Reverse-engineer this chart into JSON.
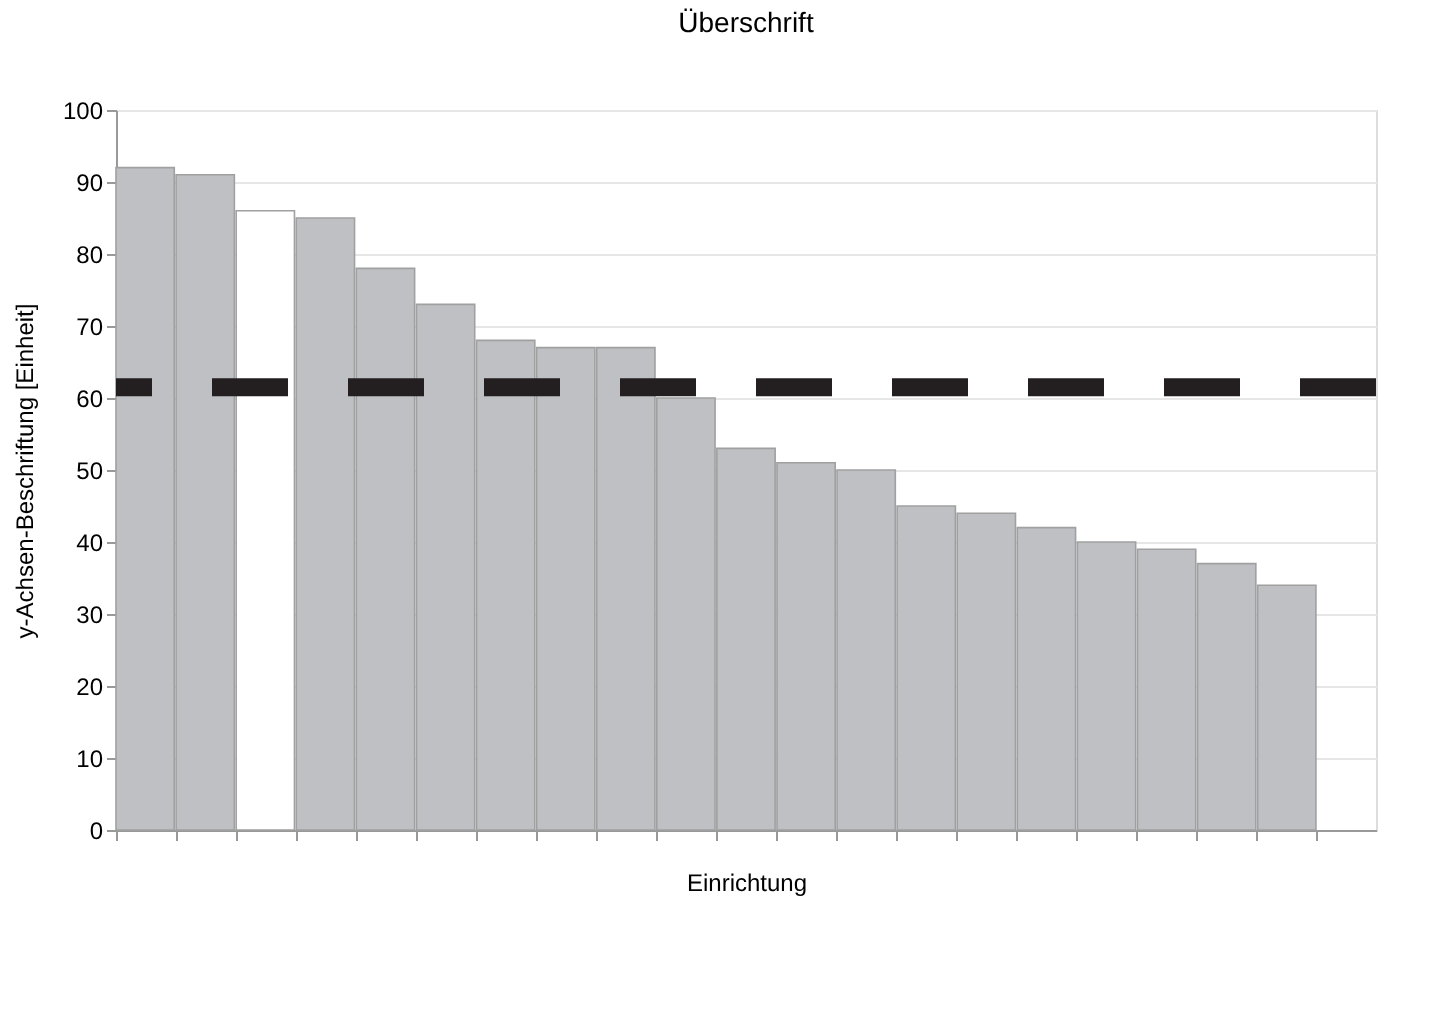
{
  "chart_data": {
    "type": "bar",
    "title": "Überschrift",
    "xlabel": "Einrichtung",
    "ylabel": "y-Achsen-Beschriftung   [Einheit]",
    "categories": [
      null,
      null,
      null,
      null,
      null,
      null,
      null,
      null,
      null,
      null,
      null,
      null,
      null,
      null,
      null,
      null,
      null,
      null,
      null,
      null,
      null
    ],
    "values": [
      92,
      91,
      86,
      85,
      78,
      73,
      68,
      67,
      67,
      60,
      53,
      51,
      50,
      45,
      44,
      42,
      40,
      39,
      37,
      34,
      null
    ],
    "colors": [
      "#bfc0c3",
      "#bfc0c3",
      "#ffffff",
      "#bfc0c3",
      "#bfc0c3",
      "#bfc0c3",
      "#bfc0c3",
      "#bfc0c3",
      "#bfc0c3",
      "#bfc0c3",
      "#bfc0c3",
      "#bfc0c3",
      "#bfc0c3",
      "#bfc0c3",
      "#bfc0c3",
      "#bfc0c3",
      "#bfc0c3",
      "#bfc0c3",
      "#bfc0c3",
      "#bfc0c3",
      "#bfc0c3"
    ],
    "ylim": [
      0,
      100
    ],
    "yticks": [
      0,
      10,
      20,
      30,
      40,
      50,
      60,
      70,
      80,
      90,
      100
    ],
    "grid": "y",
    "ref_lines": [
      {
        "axis": "y",
        "value": 61.5,
        "color": "#231f20",
        "line_style": "dashed"
      }
    ]
  }
}
